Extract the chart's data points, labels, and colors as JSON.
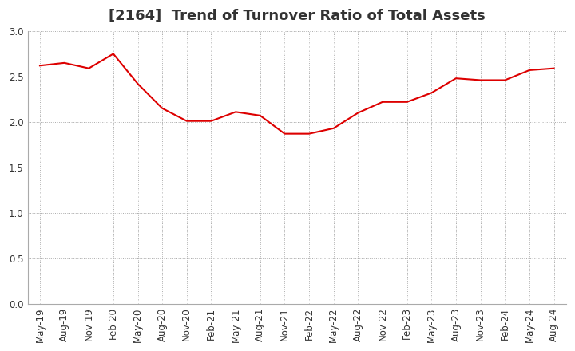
{
  "title": "[2164]  Trend of Turnover Ratio of Total Assets",
  "x_labels": [
    "May-19",
    "Aug-19",
    "Nov-19",
    "Feb-20",
    "May-20",
    "Aug-20",
    "Nov-20",
    "Feb-21",
    "May-21",
    "Aug-21",
    "Nov-21",
    "Feb-22",
    "May-22",
    "Aug-22",
    "Nov-22",
    "Feb-23",
    "May-23",
    "Aug-23",
    "Nov-23",
    "Feb-24",
    "May-24",
    "Aug-24"
  ],
  "y_values": [
    2.62,
    2.65,
    2.59,
    2.75,
    2.42,
    2.15,
    2.01,
    2.01,
    2.11,
    2.07,
    1.87,
    1.87,
    1.93,
    2.1,
    2.22,
    2.22,
    2.32,
    2.48,
    2.46,
    2.46,
    2.57,
    2.59
  ],
  "line_color": "#dd0000",
  "line_width": 1.5,
  "ylim": [
    0.0,
    3.0
  ],
  "yticks": [
    0.0,
    0.5,
    1.0,
    1.5,
    2.0,
    2.5,
    3.0
  ],
  "grid_color": "#aaaaaa",
  "background_color": "#ffffff",
  "title_fontsize": 13,
  "tick_fontsize": 8.5
}
